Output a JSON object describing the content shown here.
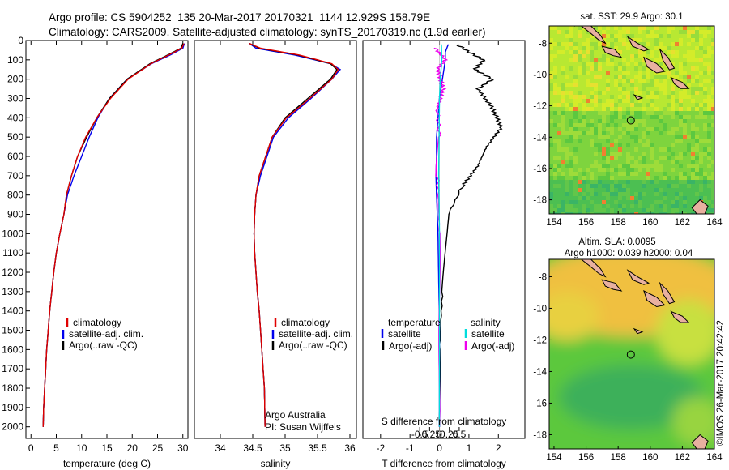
{
  "header": {
    "line1": "Argo profile: CS 5904252_135 20-Mar-2017 20170321_1144 12.929S 158.79E",
    "line2": "Climatology: CARS2009. Satellite-adjusted climatology: synTS_20170319.nc (1.9d earlier)"
  },
  "colors": {
    "climatology": "#e00000",
    "satellite": "#0000ee",
    "argo": "#000000",
    "sal_satellite": "#00dddd",
    "sal_argo": "#ee00ee"
  },
  "chart_data": [
    {
      "type": "line",
      "id": "temperature",
      "xlabel": "temperature (deg C)",
      "xlim": [
        -1,
        31
      ],
      "xticks": [
        0,
        5,
        10,
        15,
        20,
        25,
        30
      ],
      "ylim": [
        2060,
        0
      ],
      "yticks": [
        0,
        100,
        200,
        300,
        400,
        500,
        600,
        700,
        800,
        900,
        1000,
        1100,
        1200,
        1300,
        1400,
        1500,
        1600,
        1700,
        1800,
        1900,
        2000
      ],
      "legend": [
        "climatology",
        "satellite-adj. clim.",
        "Argo(..raw -QC)"
      ],
      "series": [
        {
          "name": "climatology",
          "x": [
            30.0,
            29.6,
            27,
            23.5,
            19,
            15.5,
            13,
            11,
            9.2,
            8,
            7,
            6.5,
            5.7,
            5,
            4.5,
            4.1,
            3.7,
            3.4,
            3.1,
            2.9,
            2.7,
            2.5,
            2.4
          ],
          "y": [
            15,
            40,
            75,
            120,
            200,
            300,
            400,
            500,
            600,
            700,
            800,
            900,
            1000,
            1100,
            1200,
            1300,
            1400,
            1500,
            1600,
            1700,
            1800,
            1900,
            2000
          ]
        },
        {
          "name": "satellite-adj. clim.",
          "x": [
            30.2,
            29.8,
            27.2,
            23.7,
            19.2,
            15.7,
            13,
            10.8,
            9.2,
            8,
            7,
            6.5,
            5.7,
            5,
            4.5,
            4.1,
            3.7,
            3.4,
            3.1,
            2.9,
            2.7,
            2.5,
            2.4
          ],
          "y": [
            15,
            40,
            75,
            120,
            200,
            300,
            400,
            500,
            600,
            700,
            800,
            900,
            1000,
            1100,
            1200,
            1300,
            1400,
            1500,
            1600,
            1700,
            1800,
            1900,
            2000
          ]
        },
        {
          "name": "Argo(..raw -QC)",
          "x": [
            30.3,
            30.0,
            27.5,
            23.8,
            19,
            15.5,
            13.2,
            11.5,
            10,
            8.5,
            7.2,
            6.5,
            5.7,
            5,
            4.5,
            4.1,
            3.7,
            3.4,
            3.1,
            2.9,
            2.7,
            2.5,
            2.4
          ],
          "y": [
            15,
            40,
            75,
            120,
            200,
            300,
            400,
            500,
            600,
            700,
            800,
            900,
            1000,
            1100,
            1200,
            1300,
            1400,
            1500,
            1600,
            1700,
            1800,
            1900,
            2000
          ]
        }
      ]
    },
    {
      "type": "line",
      "id": "salinity",
      "xlabel": "salinity",
      "xlim": [
        33.6,
        36.1
      ],
      "xticks": [
        34,
        34.5,
        35,
        35.5,
        36
      ],
      "ylim": [
        2060,
        0
      ],
      "legend": [
        "climatology",
        "satellite-adj. clim.",
        "Argo(..raw -QC)"
      ],
      "annotation": [
        "Argo Australia",
        "PI: Susan Wijffels"
      ],
      "series": [
        {
          "name": "climatology",
          "x": [
            34.45,
            34.6,
            35.2,
            35.7,
            35.8,
            35.7,
            35.35,
            35.0,
            34.8,
            34.7,
            34.6,
            34.55,
            34.53,
            34.52,
            34.53,
            34.55,
            34.57,
            34.6,
            34.62,
            34.64,
            34.66,
            34.68,
            34.69
          ],
          "y": [
            15,
            40,
            75,
            120,
            150,
            200,
            300,
            400,
            500,
            600,
            700,
            800,
            900,
            1000,
            1100,
            1200,
            1300,
            1400,
            1500,
            1600,
            1700,
            1800,
            2000
          ]
        },
        {
          "name": "satellite-adj. clim.",
          "x": [
            34.45,
            34.62,
            35.22,
            35.72,
            35.82,
            35.72,
            35.38,
            35.02,
            34.8,
            34.7,
            34.6,
            34.55,
            34.53,
            34.52,
            34.53,
            34.55,
            34.57,
            34.6,
            34.62,
            34.64,
            34.66,
            34.68,
            34.69
          ],
          "y": [
            15,
            40,
            75,
            120,
            150,
            200,
            300,
            400,
            500,
            600,
            700,
            800,
            900,
            1000,
            1100,
            1200,
            1300,
            1400,
            1500,
            1600,
            1700,
            1800,
            2000
          ]
        },
        {
          "name": "Argo(..raw -QC)",
          "x": [
            34.45,
            34.55,
            35.15,
            35.7,
            35.85,
            35.72,
            35.4,
            35.05,
            34.82,
            34.72,
            34.62,
            34.55,
            34.53,
            34.52,
            34.53,
            34.55,
            34.57,
            34.6,
            34.62,
            34.64,
            34.66,
            34.68,
            34.69
          ],
          "y": [
            15,
            40,
            75,
            120,
            150,
            200,
            300,
            400,
            500,
            600,
            700,
            800,
            900,
            1000,
            1100,
            1200,
            1300,
            1400,
            1500,
            1600,
            1700,
            1800,
            2000
          ]
        }
      ]
    },
    {
      "type": "line",
      "id": "differences",
      "xlabel": "T difference from climatology",
      "xlim": [
        -2.6,
        2.9
      ],
      "xticks": [
        -2,
        -1,
        0,
        1,
        2
      ],
      "s_axis_label": "S difference from climatology",
      "s_ticks": [
        "-0.5",
        "-0.25",
        "0",
        "0.25",
        "0.5"
      ],
      "s_tick_values": [
        -0.5,
        -0.25,
        0,
        0.25,
        0.5
      ],
      "ylim": [
        2060,
        0
      ],
      "legend_left_title": "temperature",
      "legend_right_title": "salinity",
      "legend_left": [
        "satellite",
        "Argo(-adj)"
      ],
      "legend_right": [
        "satellite",
        "Argo(-adj)"
      ],
      "series": [
        {
          "name": "temperature satellite",
          "x": [
            0.3,
            0.2,
            0.2,
            0.1,
            0.0,
            -0.05,
            -0.1,
            -0.1,
            -0.12,
            -0.1,
            -0.05,
            0,
            0
          ],
          "y": [
            20,
            60,
            100,
            200,
            300,
            400,
            500,
            600,
            700,
            800,
            1000,
            1500,
            2000
          ]
        },
        {
          "name": "temperature Argo(-adj)",
          "x": [
            0.6,
            1.0,
            1.5,
            1.2,
            1.8,
            1.3,
            1.8,
            2.1,
            1.6,
            1.3,
            0.8,
            0.3,
            0.2,
            0.1,
            0.0,
            0.0
          ],
          "y": [
            20,
            60,
            100,
            150,
            200,
            250,
            350,
            450,
            550,
            650,
            750,
            900,
            1100,
            1300,
            1600,
            2000
          ]
        },
        {
          "name": "salinity satellite",
          "x": [
            0.05,
            0.06,
            0.02,
            0.0,
            -0.01,
            -0.02,
            0,
            0
          ],
          "y": [
            20,
            100,
            200,
            300,
            500,
            700,
            1000,
            2000
          ]
        },
        {
          "name": "salinity Argo(-adj)",
          "x": [
            -0.1,
            0.15,
            -0.05,
            0.1,
            -0.05,
            0,
            -0.05,
            0,
            0
          ],
          "y": [
            40,
            100,
            150,
            250,
            350,
            500,
            700,
            1000,
            2000
          ]
        }
      ]
    }
  ],
  "map_sst": {
    "title": "sat. SST: 29.9 Argo: 30.1",
    "xticks": [
      154,
      156,
      158,
      160,
      162,
      164
    ],
    "yticks": [
      -8,
      -10,
      -12,
      -14,
      -16,
      -18
    ]
  },
  "map_sla": {
    "title1": "Altim. SLA: 0.0095",
    "title2": "Argo h1000: 0.039 h2000: 0.04",
    "xticks": [
      154,
      156,
      158,
      160,
      162,
      164
    ],
    "yticks": [
      -8,
      -10,
      -12,
      -14,
      -16,
      -18
    ]
  },
  "profile_location": {
    "lon": 158.79,
    "lat": -12.929
  },
  "credit": "©IMOS 26-Mar-2017 20:42:42"
}
